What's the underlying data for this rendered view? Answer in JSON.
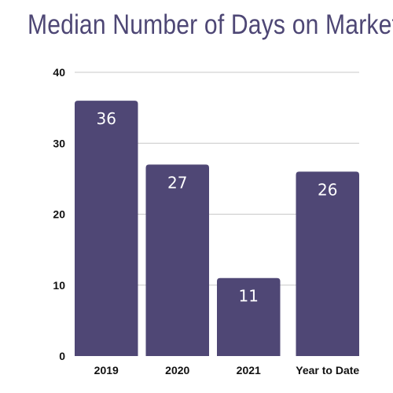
{
  "chart_data": {
    "type": "bar",
    "title": "Median Number of Days on Market",
    "categories": [
      "2019",
      "2020",
      "2021",
      "Year to Date"
    ],
    "values": [
      36,
      27,
      11,
      26
    ],
    "data_labels": [
      "36",
      "27",
      "11",
      "26"
    ],
    "xlabel": "",
    "ylabel": "",
    "ylim": [
      0,
      40
    ],
    "yticks": [
      "0",
      "10",
      "20",
      "30",
      "40"
    ],
    "grid": true,
    "legend": "none",
    "bar_color": "#4f4775",
    "gridline_color": "#c8c8c8",
    "title_color": "#4e4775"
  }
}
